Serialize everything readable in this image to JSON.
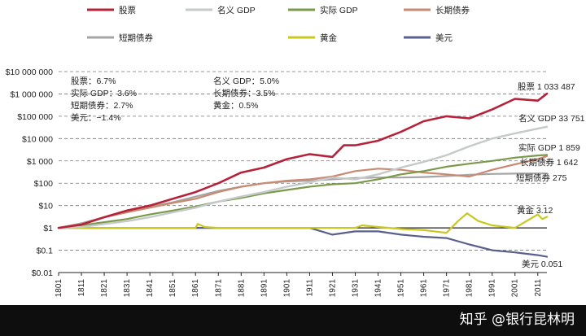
{
  "chart_data": {
    "type": "line",
    "y_scale": "log",
    "ylim": [
      0.01,
      10000000
    ],
    "xlim": [
      1801,
      2015
    ],
    "grid": "horizontal dashed",
    "legend_position": "top",
    "y_ticks": [
      {
        "value": 10000000,
        "label": "$10 000 000"
      },
      {
        "value": 1000000,
        "label": "$1 000 000"
      },
      {
        "value": 100000,
        "label": "$100 000"
      },
      {
        "value": 10000,
        "label": "$10 000"
      },
      {
        "value": 1000,
        "label": "$1 000"
      },
      {
        "value": 100,
        "label": "$100"
      },
      {
        "value": 10,
        "label": "$10"
      },
      {
        "value": 1,
        "label": "$1"
      },
      {
        "value": 0.1,
        "label": "$0.1"
      },
      {
        "value": 0.01,
        "label": "$0.01"
      }
    ],
    "x_ticks": [
      "1801",
      "1811",
      "1821",
      "1831",
      "1841",
      "1851",
      "1861",
      "1871",
      "1881",
      "1891",
      "1901",
      "1911",
      "1921",
      "1931",
      "1941",
      "1951",
      "1961",
      "1971",
      "1981",
      "1991",
      "2001",
      "2011"
    ],
    "annotations": [
      {
        "text": "股票：6.7%",
        "col": 0,
        "row": 0
      },
      {
        "text": "实际 GDP：3.6%",
        "col": 0,
        "row": 1
      },
      {
        "text": "短期债券：2.7%",
        "col": 0,
        "row": 2
      },
      {
        "text": "美元：−1.4%",
        "col": 0,
        "row": 3
      },
      {
        "text": "名义 GDP：5.0%",
        "col": 1,
        "row": 0
      },
      {
        "text": "长期债券：3.5%",
        "col": 1,
        "row": 1
      },
      {
        "text": "黄金：0.5%",
        "col": 1,
        "row": 2
      }
    ],
    "series": [
      {
        "name": "股票",
        "end_label": "股票 1 033 487",
        "color": "#b5223a",
        "width": 2.6,
        "x": [
          1801,
          1811,
          1821,
          1831,
          1841,
          1851,
          1861,
          1871,
          1881,
          1891,
          1901,
          1911,
          1921,
          1926,
          1931,
          1941,
          1951,
          1961,
          1971,
          1981,
          1991,
          2001,
          2011,
          2015
        ],
        "y": [
          1,
          1.4,
          3,
          6,
          10,
          20,
          40,
          100,
          300,
          500,
          1200,
          2000,
          1500,
          5000,
          5000,
          8000,
          20000,
          60000,
          100000,
          80000,
          200000,
          600000,
          500000,
          1033487
        ]
      },
      {
        "name": "名义 GDP",
        "end_label": "名义 GDP 33 751",
        "color": "#c5c9c9",
        "width": 2.4,
        "x": [
          1801,
          1811,
          1821,
          1831,
          1841,
          1851,
          1861,
          1871,
          1881,
          1891,
          1901,
          1911,
          1921,
          1931,
          1941,
          1951,
          1961,
          1971,
          1981,
          1991,
          2001,
          2011,
          2015
        ],
        "y": [
          1,
          1.1,
          1.5,
          2,
          3,
          5,
          8,
          15,
          25,
          40,
          70,
          110,
          180,
          150,
          250,
          500,
          900,
          1800,
          4500,
          10000,
          17000,
          28000,
          33751
        ]
      },
      {
        "name": "实际 GDP",
        "end_label": "实际 GDP 1 859",
        "color": "#7a9a4a",
        "width": 2.2,
        "x": [
          1801,
          1811,
          1821,
          1831,
          1841,
          1851,
          1861,
          1871,
          1881,
          1891,
          1901,
          1911,
          1921,
          1931,
          1941,
          1951,
          1961,
          1971,
          1981,
          1991,
          2001,
          2011,
          2015
        ],
        "y": [
          1,
          1.3,
          1.8,
          2.5,
          4,
          6,
          9,
          15,
          22,
          35,
          50,
          70,
          90,
          100,
          150,
          250,
          350,
          550,
          750,
          1000,
          1400,
          1750,
          1859
        ]
      },
      {
        "name": "长期债券",
        "end_label": "长期债券 1 642",
        "color": "#c98a72",
        "width": 2.2,
        "x": [
          1801,
          1811,
          1821,
          1831,
          1841,
          1851,
          1861,
          1871,
          1881,
          1891,
          1901,
          1911,
          1921,
          1931,
          1941,
          1951,
          1961,
          1971,
          1981,
          1991,
          2001,
          2011,
          2015
        ],
        "y": [
          1,
          1.5,
          3,
          5,
          8,
          13,
          20,
          40,
          70,
          100,
          130,
          150,
          200,
          350,
          450,
          400,
          300,
          250,
          200,
          400,
          700,
          1200,
          1642
        ]
      },
      {
        "name": "短期债券",
        "end_label": "短期债券 275",
        "color": "#a5a5a5",
        "width": 2.2,
        "x": [
          1801,
          1811,
          1821,
          1831,
          1841,
          1851,
          1861,
          1871,
          1881,
          1891,
          1901,
          1911,
          1921,
          1931,
          1941,
          1951,
          1961,
          1971,
          1981,
          1991,
          2001,
          2011,
          2015
        ],
        "y": [
          1,
          1.6,
          3,
          5,
          9,
          14,
          25,
          45,
          70,
          100,
          120,
          130,
          150,
          170,
          180,
          180,
          190,
          210,
          240,
          260,
          270,
          274,
          275
        ]
      },
      {
        "name": "黄金",
        "end_label": "黄金 3.12",
        "color": "#c8c81e",
        "width": 2.2,
        "x": [
          1801,
          1811,
          1821,
          1831,
          1841,
          1851,
          1861,
          1862,
          1865,
          1871,
          1881,
          1891,
          1911,
          1931,
          1934,
          1941,
          1951,
          1961,
          1971,
          1976,
          1980,
          1985,
          1991,
          2001,
          2006,
          2011,
          2013,
          2015
        ],
        "y": [
          1,
          1,
          1,
          1,
          1,
          1,
          1,
          1.5,
          1.1,
          1,
          1,
          1,
          1,
          1,
          1.3,
          1.1,
          0.9,
          0.8,
          0.6,
          2,
          4.5,
          2,
          1.3,
          1,
          2,
          4,
          2.5,
          3.12
        ]
      },
      {
        "name": "美元",
        "end_label": "美元 0.051",
        "color": "#5a5f8c",
        "width": 2.2,
        "x": [
          1801,
          1811,
          1821,
          1831,
          1841,
          1851,
          1861,
          1871,
          1881,
          1891,
          1901,
          1911,
          1921,
          1931,
          1941,
          1951,
          1961,
          1971,
          1981,
          1991,
          2001,
          2011,
          2015
        ],
        "y": [
          1,
          1,
          1,
          1,
          1,
          1,
          1,
          1,
          1,
          1,
          1,
          1,
          0.5,
          0.7,
          0.7,
          0.5,
          0.4,
          0.35,
          0.18,
          0.1,
          0.08,
          0.06,
          0.051
        ]
      }
    ]
  },
  "legend": [
    {
      "name": "股票",
      "color": "#b5223a"
    },
    {
      "name": "名义 GDP",
      "color": "#c5c9c9"
    },
    {
      "name": "实际 GDP",
      "color": "#7a9a4a"
    },
    {
      "name": "长期债券",
      "color": "#c98a72"
    },
    {
      "name": "短期债券",
      "color": "#a5a5a5"
    },
    {
      "name": "黄金",
      "color": "#c8c81e"
    },
    {
      "name": "美元",
      "color": "#5a5f8c"
    }
  ],
  "watermark": "知乎 @银行昆林明"
}
